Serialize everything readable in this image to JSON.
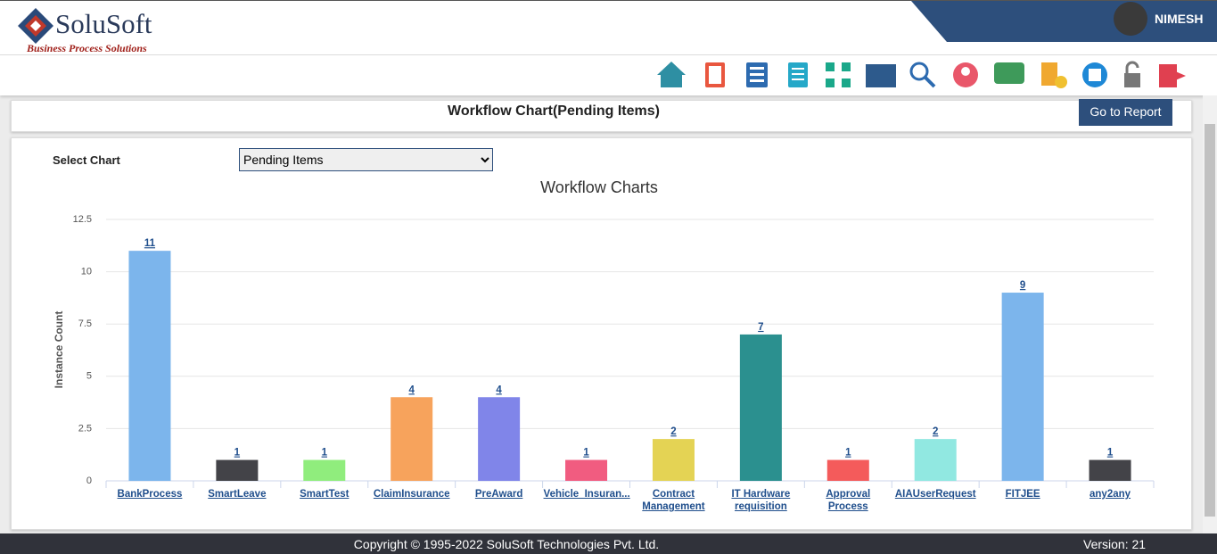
{
  "header": {
    "logo": "SoluSoft",
    "tagline": "Business Process Solutions",
    "user": "NIMESH"
  },
  "page": {
    "title": "Workflow Chart(Pending Items)",
    "button": "Go to Report",
    "select_label": "Select Chart",
    "select_value": "Pending Items"
  },
  "chart_data": {
    "type": "bar",
    "title": "Workflow Charts",
    "y_label": "Instance Count",
    "categories": [
      "BankProcess",
      "SmartLeave",
      "SmartTest",
      "ClaimInsurance",
      "PreAward",
      "Vehicle_Insuran...",
      "Contract Management",
      "IT Hardware requisition",
      "Approval Process",
      "AIAUserRequest",
      "FITJEE",
      "any2any"
    ],
    "values": [
      11,
      1,
      1,
      4,
      4,
      1,
      2,
      7,
      1,
      2,
      9,
      1
    ],
    "colors": [
      "#7cb5ec",
      "#434348",
      "#90ed7d",
      "#f7a35c",
      "#8085e9",
      "#f15c80",
      "#e4d354",
      "#2b908f",
      "#f45b5b",
      "#91e8e1",
      "#7cb5ec",
      "#434348"
    ],
    "ylim": [
      0,
      12.5
    ],
    "yticks": [
      0,
      2.5,
      5,
      7.5,
      10,
      12.5
    ],
    "grid": true
  },
  "footer": {
    "copyright": "Copyright © 1995-2022 SoluSoft Technologies Pvt. Ltd.",
    "version": "Version: 21"
  }
}
